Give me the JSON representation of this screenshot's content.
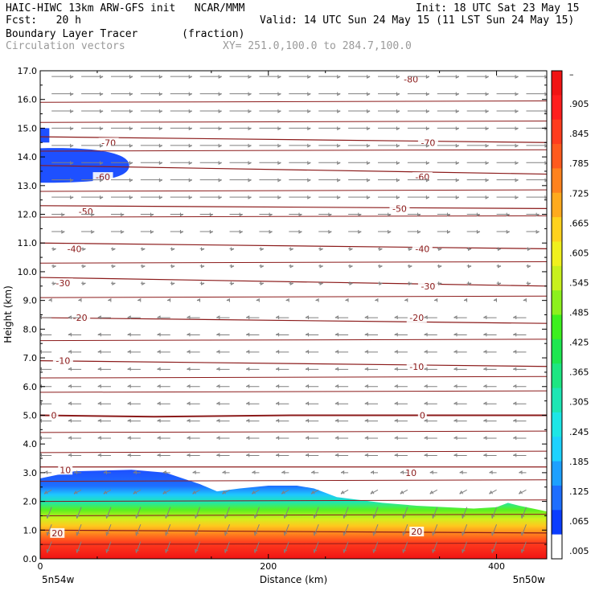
{
  "header": {
    "model_line": "HAIC-HIWC 13km ARW-GFS init   NCAR/MMM",
    "init_line": "Init: 18 UTC Sat 23 May 15",
    "fcst_line": "Fcst:   20 h",
    "valid_line": "Valid: 14 UTC Sun 24 May 15 (11 LST Sun 24 May 15)",
    "field_line": "Boundary Layer Tracer       (fraction)",
    "vector_line": "Circulation vectors",
    "xy_line": "XY= 251.0,100.0 to 284.7,100.0"
  },
  "colors": {
    "contour": "#8b1a1a",
    "vector": "#808080",
    "colorbar": [
      "#ffffff",
      "#0a3cff",
      "#1e6eff",
      "#1ea0ff",
      "#1ed2ff",
      "#1ee6e6",
      "#1ee6b4",
      "#1ee682",
      "#1ee650",
      "#3cf01e",
      "#8cf01e",
      "#c8f01e",
      "#f0f01e",
      "#ffd21e",
      "#ffaa1e",
      "#ff821e",
      "#ff5a1e",
      "#ff3c1e",
      "#ff1e1e",
      "#f01414"
    ]
  },
  "chart_data": {
    "type": "cross-section",
    "xlabel": "Distance (km)",
    "ylabel": "Height (km)",
    "xlim": [
      0,
      444
    ],
    "ylim": [
      0.0,
      17.0
    ],
    "x_ticks": [
      "0",
      "200",
      "400"
    ],
    "x_tick_values": [
      0,
      200,
      400
    ],
    "y_ticks": [
      "0.0",
      "1.0",
      "2.0",
      "3.0",
      "4.0",
      "5.0",
      "6.0",
      "7.0",
      "8.0",
      "9.0",
      "10.0",
      "11.0",
      "12.0",
      "13.0",
      "14.0",
      "15.0",
      "16.0",
      "17.0"
    ],
    "left_end_label": "5n54w",
    "right_end_label": "5n50w",
    "colorbar_labels": [
      ".005",
      ".065",
      ".125",
      ".185",
      ".245",
      ".305",
      ".365",
      ".425",
      ".485",
      ".545",
      ".605",
      ".665",
      ".725",
      ".785",
      ".845",
      ".905",
      "–"
    ],
    "colorbar_values": [
      0.005,
      0.065,
      0.125,
      0.185,
      0.245,
      0.305,
      0.365,
      0.425,
      0.485,
      0.545,
      0.605,
      0.665,
      0.725,
      0.785,
      0.845,
      0.905
    ],
    "temperature_contours": [
      {
        "value": -80,
        "label": "-80",
        "heights": [
          [
            0,
            17.2
          ],
          [
            444,
            17.2
          ]
        ],
        "label_at": [
          [
            325,
            16.7
          ]
        ]
      },
      {
        "value": -70,
        "label": "-70",
        "heights": [
          [
            0,
            14.7
          ],
          [
            444,
            14.5
          ]
        ],
        "label_at": [
          [
            60,
            14.5
          ],
          [
            340,
            14.5
          ]
        ]
      },
      {
        "value": -60,
        "label": "-60",
        "heights": [
          [
            0,
            13.7
          ],
          [
            444,
            13.4
          ]
        ],
        "label_at": [
          [
            55,
            13.3
          ],
          [
            335,
            13.3
          ]
        ]
      },
      {
        "value": -50,
        "label": "-50",
        "heights": [
          [
            0,
            12.3
          ],
          [
            444,
            12.2
          ]
        ],
        "label_at": [
          [
            40,
            12.1
          ],
          [
            315,
            12.2
          ]
        ]
      },
      {
        "value": -40,
        "label": "-40",
        "heights": [
          [
            0,
            11.0
          ],
          [
            444,
            10.8
          ]
        ],
        "label_at": [
          [
            30,
            10.8
          ],
          [
            335,
            10.8
          ]
        ]
      },
      {
        "value": -30,
        "label": "-30",
        "heights": [
          [
            0,
            9.8
          ],
          [
            444,
            9.5
          ]
        ],
        "label_at": [
          [
            20,
            9.6
          ],
          [
            340,
            9.5
          ]
        ]
      },
      {
        "value": -20,
        "label": "-20",
        "heights": [
          [
            0,
            8.4
          ],
          [
            444,
            8.2
          ]
        ],
        "label_at": [
          [
            35,
            8.4
          ],
          [
            330,
            8.4
          ]
        ]
      },
      {
        "value": -10,
        "label": "-10",
        "heights": [
          [
            0,
            6.9
          ],
          [
            444,
            6.7
          ]
        ],
        "label_at": [
          [
            20,
            6.9
          ],
          [
            330,
            6.7
          ]
        ]
      },
      {
        "value": 0,
        "label": "0",
        "heights": [
          [
            0,
            5.0
          ],
          [
            100,
            4.95
          ],
          [
            220,
            5.0
          ],
          [
            444,
            5.0
          ]
        ],
        "label_at": [
          [
            12,
            5.0
          ],
          [
            335,
            5.0
          ]
        ]
      },
      {
        "value": 10,
        "label": "10",
        "heights": [
          [
            0,
            3.2
          ],
          [
            444,
            3.2
          ]
        ],
        "label_at": [
          [
            22,
            3.1
          ],
          [
            325,
            3.0
          ]
        ]
      },
      {
        "value": 20,
        "label": "20",
        "heights": [
          [
            0,
            1.0
          ],
          [
            444,
            0.9
          ]
        ],
        "label_at": [
          [
            15,
            0.9
          ],
          [
            330,
            0.95
          ]
        ]
      }
    ],
    "extra_isolines_km": [
      17.0,
      15.9,
      15.2,
      14.2,
      12.8,
      11.9,
      10.3,
      9.1,
      7.6,
      6.3,
      5.8,
      4.4,
      3.7,
      2.7,
      2.0,
      1.5,
      0.5
    ],
    "tracer_top_km": [
      [
        0,
        2.8
      ],
      [
        30,
        3.05
      ],
      [
        80,
        3.1
      ],
      [
        110,
        3.0
      ],
      [
        140,
        2.6
      ],
      [
        155,
        2.35
      ],
      [
        175,
        2.45
      ],
      [
        200,
        2.55
      ],
      [
        225,
        2.55
      ],
      [
        240,
        2.45
      ],
      [
        260,
        2.15
      ],
      [
        300,
        1.95
      ],
      [
        330,
        1.85
      ],
      [
        380,
        1.75
      ],
      [
        400,
        1.8
      ],
      [
        410,
        1.95
      ],
      [
        420,
        1.85
      ],
      [
        444,
        1.65
      ]
    ],
    "upper_patch_km": {
      "x_start": 0,
      "x_end": 78,
      "top": 14.3,
      "bottom": 13.1
    },
    "small_patch_km": {
      "x_start": 0,
      "x_end": 8,
      "top": 15.0,
      "bottom": 14.5
    }
  }
}
